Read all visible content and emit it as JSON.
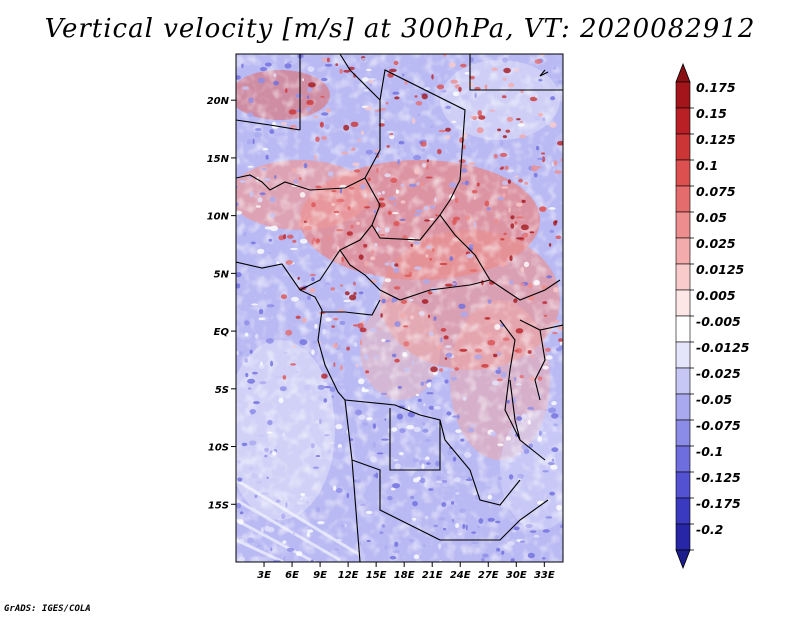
{
  "title": "Vertical velocity [m/s] at 300hPa, VT: 2020082912",
  "credit": "GrADS: IGES/COLA",
  "map": {
    "projection": "latlon",
    "region": "Central Africa",
    "lon_range": [
      0,
      35
    ],
    "lat_range": [
      -20,
      24
    ],
    "lat_ticks": [
      {
        "value": 20,
        "label": "20N"
      },
      {
        "value": 15,
        "label": "15N"
      },
      {
        "value": 10,
        "label": "10N"
      },
      {
        "value": 5,
        "label": "5N"
      },
      {
        "value": 0,
        "label": "EQ"
      },
      {
        "value": -5,
        "label": "5S"
      },
      {
        "value": -10,
        "label": "10S"
      },
      {
        "value": -15,
        "label": "15S"
      }
    ],
    "lon_ticks": [
      {
        "value": 3,
        "label": "3E"
      },
      {
        "value": 6,
        "label": "6E"
      },
      {
        "value": 9,
        "label": "9E"
      },
      {
        "value": 12,
        "label": "12E"
      },
      {
        "value": 15,
        "label": "15E"
      },
      {
        "value": 18,
        "label": "18E"
      },
      {
        "value": 21,
        "label": "21E"
      },
      {
        "value": 24,
        "label": "24E"
      },
      {
        "value": 27,
        "label": "27E"
      },
      {
        "value": 30,
        "label": "30E"
      },
      {
        "value": 33,
        "label": "33E"
      }
    ],
    "field": "vertical velocity",
    "units": "m/s",
    "level": "300hPa"
  },
  "colorbar": {
    "levels": [
      {
        "label": "0.175",
        "color": "#a3151b"
      },
      {
        "label": "0.15",
        "color": "#b82025"
      },
      {
        "label": "0.125",
        "color": "#cc3535"
      },
      {
        "label": "0.1",
        "color": "#dc5050"
      },
      {
        "label": "0.075",
        "color": "#e56c6c"
      },
      {
        "label": "0.05",
        "color": "#ee8d8d"
      },
      {
        "label": "0.025",
        "color": "#f4abab"
      },
      {
        "label": "0.0125",
        "color": "#f9cbcb"
      },
      {
        "label": "0.005",
        "color": "#fde6e6"
      },
      {
        "label": "-0.005",
        "color": "#ffffff"
      },
      {
        "label": "-0.0125",
        "color": "#e4e4fb"
      },
      {
        "label": "-0.025",
        "color": "#c7c7f6"
      },
      {
        "label": "-0.05",
        "color": "#a9a9f0"
      },
      {
        "label": "-0.075",
        "color": "#8b8be8"
      },
      {
        "label": "-0.1",
        "color": "#6e6edf"
      },
      {
        "label": "-0.125",
        "color": "#5252d2"
      },
      {
        "label": "-0.175",
        "color": "#3a3ac0"
      },
      {
        "label": "-0.2",
        "color": "#2626a6"
      }
    ],
    "top_triangle_color": "#8b1014",
    "bottom_triangle_color": "#1c1c8c"
  }
}
